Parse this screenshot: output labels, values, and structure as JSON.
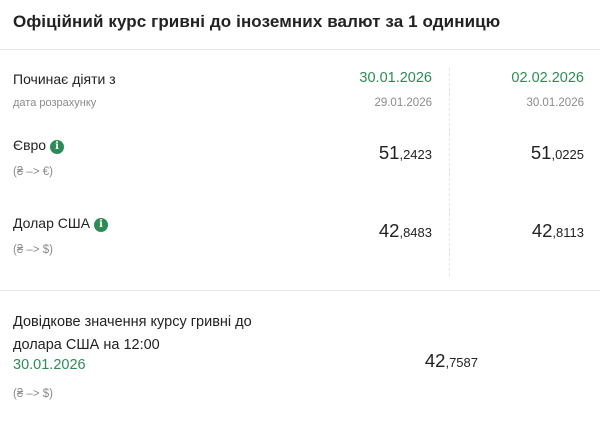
{
  "header": {
    "title": "Офіційний курс гривні до іноземних валют за 1 одиницю"
  },
  "period": {
    "label": "Починає діяти з",
    "sublabel": "дата розрахунку",
    "col1": {
      "effective": "30.01.2026",
      "calculated": "29.01.2026"
    },
    "col2": {
      "effective": "02.02.2026",
      "calculated": "30.01.2026"
    }
  },
  "currencies": [
    {
      "name": "Євро",
      "direction": "(₴ –> €)",
      "col1": {
        "int": "51",
        "frac": ",2423"
      },
      "col2": {
        "int": "51",
        "frac": ",0225"
      }
    },
    {
      "name": "Долар США",
      "direction": "(₴ –> $)",
      "col1": {
        "int": "42",
        "frac": ",8483"
      },
      "col2": {
        "int": "42",
        "frac": ",8113"
      }
    }
  ],
  "reference": {
    "title": "Довідкове значення курсу гривні до долара США на 12:00",
    "date": "30.01.2026",
    "direction": "(₴ –> $)",
    "rate": {
      "int": "42",
      "frac": ",7587"
    }
  },
  "icons": {
    "info": "info-icon"
  },
  "colors": {
    "accent_green": "#2e8b57",
    "muted_gray": "#8a8a8a",
    "divider": "#e6e6e6"
  }
}
